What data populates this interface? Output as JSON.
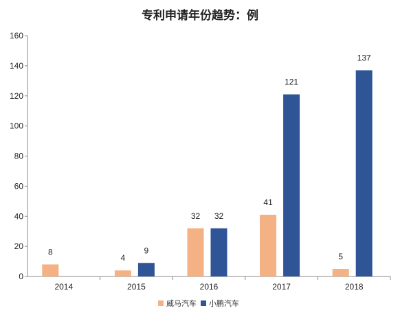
{
  "chart_data": {
    "type": "bar",
    "title": "专利申请年份趋势：例",
    "categories": [
      "2014",
      "2015",
      "2016",
      "2017",
      "2018"
    ],
    "series": [
      {
        "name": "威马汽车",
        "color": "#F4B183",
        "values": [
          8,
          4,
          32,
          41,
          5
        ]
      },
      {
        "name": "小鹏汽车",
        "color": "#2F5597",
        "values": [
          null,
          9,
          32,
          121,
          137
        ]
      }
    ],
    "ylim": [
      0,
      160
    ],
    "yticks": [
      0,
      20,
      40,
      60,
      80,
      100,
      120,
      140,
      160
    ],
    "grid": false,
    "legend_position": "bottom-center"
  }
}
